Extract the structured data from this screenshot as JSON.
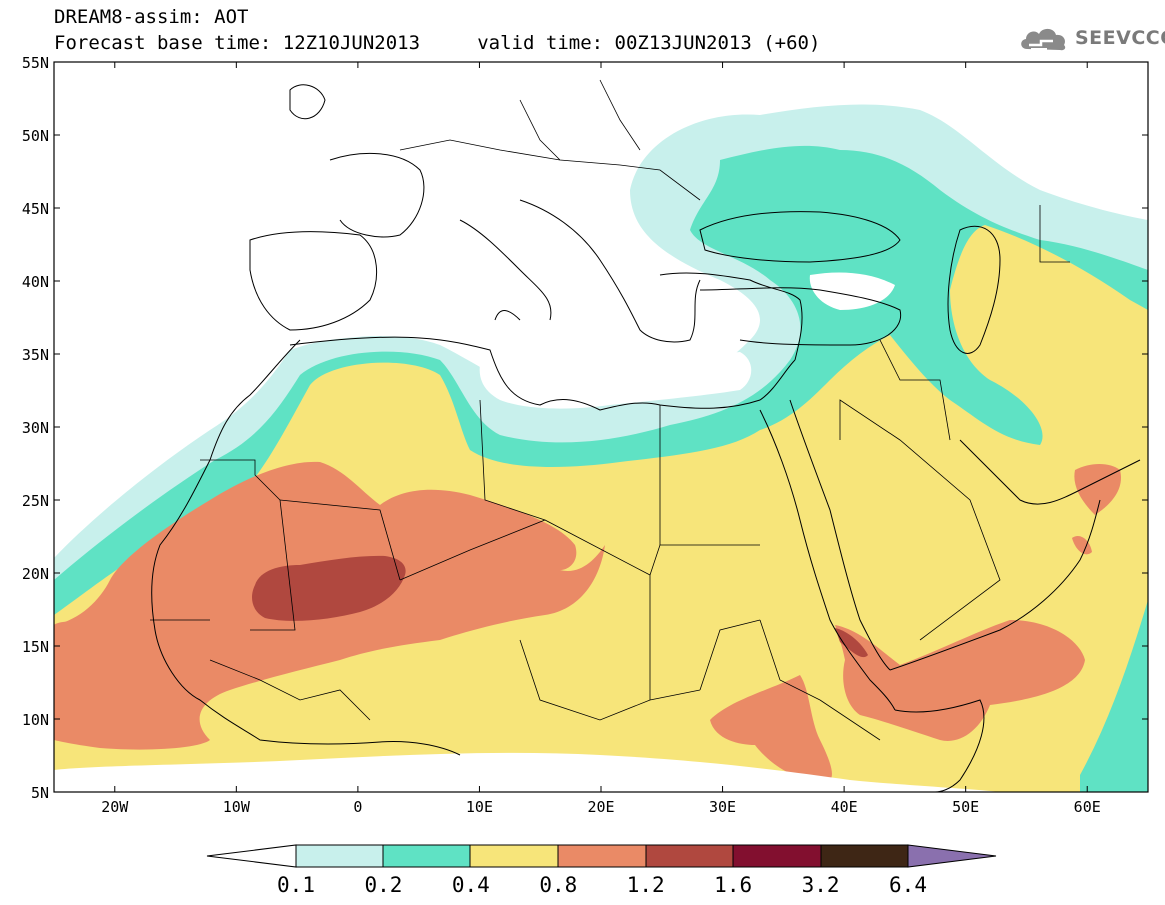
{
  "header": {
    "line1": "DREAM8-assim: AOT",
    "line2": "Forecast base time: 12Z10JUN2013     valid time: 00Z13JUN2013 (+60)"
  },
  "logo": {
    "text": "SEEVCCC",
    "icon": "cloud-icon"
  },
  "map": {
    "lat_labels": [
      "55N",
      "50N",
      "45N",
      "40N",
      "35N",
      "30N",
      "25N",
      "20N",
      "15N",
      "10N",
      "5N"
    ],
    "lon_labels": [
      "20W",
      "10W",
      "0",
      "10E",
      "20E",
      "30E",
      "40E",
      "50E",
      "60E"
    ],
    "extent": {
      "lon": [
        -25,
        65
      ],
      "lat": [
        5,
        55
      ]
    },
    "region": "North Africa, Mediterranean, Middle East"
  },
  "colorbar": {
    "tick_labels": [
      "0.1",
      "0.2",
      "0.4",
      "0.8",
      "1.2",
      "1.6",
      "3.2",
      "6.4"
    ],
    "colors": {
      "below_min": "#ffffff",
      "c_0.1_0.2": "#c8f0ec",
      "c_0.2_0.4": "#5fe2c4",
      "c_0.4_0.8": "#f7e57a",
      "c_0.8_1.2": "#ea8a66",
      "c_1.2_1.6": "#b0483f",
      "c_1.6_3.2": "#820f2f",
      "c_3.2_6.4": "#3e2615",
      "above_max": "#8a70ae"
    }
  }
}
